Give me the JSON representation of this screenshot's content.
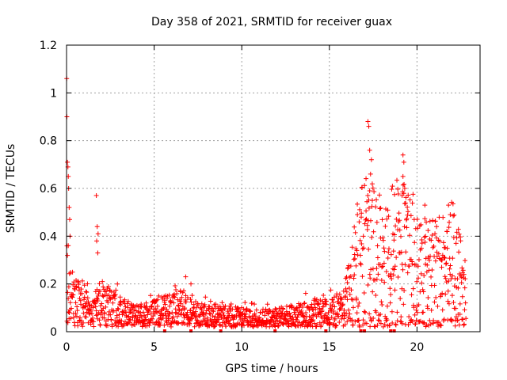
{
  "chart_data": {
    "type": "scatter",
    "title": "Day 358 of 2021, SRMTID for receiver guax",
    "xlabel": "GPS time / hours",
    "ylabel": "SRMTID / TECUs",
    "xlim": [
      0,
      23.6
    ],
    "ylim": [
      0,
      1.2
    ],
    "x_ticks": [
      0,
      5,
      10,
      15,
      20
    ],
    "y_ticks": [
      0,
      0.2,
      0.4,
      0.6,
      0.8,
      1.0,
      1.2
    ],
    "x_tick_labels": [
      "0",
      "5",
      "10",
      "15",
      "20"
    ],
    "y_tick_labels": [
      "0",
      "0.2",
      "0.4",
      "0.6",
      "0.8",
      "1",
      "1.2"
    ],
    "grid": true,
    "marker": "+",
    "color": "#ff0000",
    "series": [
      {
        "name": "SRMTID",
        "profile": [
          {
            "x": 0.0,
            "y": 0.22
          },
          {
            "x": 0.3,
            "y": 0.15
          },
          {
            "x": 0.8,
            "y": 0.1
          },
          {
            "x": 1.5,
            "y": 0.08
          },
          {
            "x": 2.0,
            "y": 0.12
          },
          {
            "x": 3.0,
            "y": 0.08
          },
          {
            "x": 4.0,
            "y": 0.06
          },
          {
            "x": 5.0,
            "y": 0.07
          },
          {
            "x": 6.5,
            "y": 0.1
          },
          {
            "x": 7.5,
            "y": 0.07
          },
          {
            "x": 9.0,
            "y": 0.06
          },
          {
            "x": 11.0,
            "y": 0.05
          },
          {
            "x": 13.0,
            "y": 0.06
          },
          {
            "x": 14.0,
            "y": 0.08
          },
          {
            "x": 15.0,
            "y": 0.07
          },
          {
            "x": 15.8,
            "y": 0.1
          },
          {
            "x": 16.3,
            "y": 0.2
          },
          {
            "x": 17.0,
            "y": 0.3
          },
          {
            "x": 18.0,
            "y": 0.25
          },
          {
            "x": 19.0,
            "y": 0.3
          },
          {
            "x": 20.0,
            "y": 0.22
          },
          {
            "x": 21.0,
            "y": 0.2
          },
          {
            "x": 22.0,
            "y": 0.25
          },
          {
            "x": 22.8,
            "y": 0.12
          }
        ],
        "spikes": [
          {
            "x": 0.01,
            "y": 1.06
          },
          {
            "x": 0.02,
            "y": 0.9
          },
          {
            "x": 0.05,
            "y": 0.71
          },
          {
            "x": 0.08,
            "y": 0.69
          },
          {
            "x": 0.1,
            "y": 0.65
          },
          {
            "x": 0.12,
            "y": 0.6
          },
          {
            "x": 0.15,
            "y": 0.52
          },
          {
            "x": 0.18,
            "y": 0.47
          },
          {
            "x": 0.2,
            "y": 0.4
          },
          {
            "x": 1.7,
            "y": 0.57
          },
          {
            "x": 1.75,
            "y": 0.44
          },
          {
            "x": 1.8,
            "y": 0.41
          },
          {
            "x": 1.72,
            "y": 0.38
          },
          {
            "x": 1.78,
            "y": 0.33
          },
          {
            "x": 7.1,
            "y": 0.2
          },
          {
            "x": 6.8,
            "y": 0.23
          },
          {
            "x": 17.2,
            "y": 0.88
          },
          {
            "x": 17.25,
            "y": 0.86
          },
          {
            "x": 17.3,
            "y": 0.76
          },
          {
            "x": 17.4,
            "y": 0.72
          },
          {
            "x": 17.35,
            "y": 0.66
          },
          {
            "x": 17.3,
            "y": 0.59
          },
          {
            "x": 17.45,
            "y": 0.55
          },
          {
            "x": 19.2,
            "y": 0.74
          },
          {
            "x": 19.25,
            "y": 0.71
          },
          {
            "x": 19.2,
            "y": 0.65
          },
          {
            "x": 19.3,
            "y": 0.6
          },
          {
            "x": 19.15,
            "y": 0.57
          },
          {
            "x": 20.45,
            "y": 0.53
          },
          {
            "x": 21.8,
            "y": 0.53
          },
          {
            "x": 21.9,
            "y": 0.49
          },
          {
            "x": 16.6,
            "y": 0.49
          },
          {
            "x": 16.7,
            "y": 0.46
          }
        ],
        "zero_points": [
          5.6,
          7.1,
          8.8,
          11.9,
          14.8,
          16.8,
          17.0,
          18.5,
          18.7
        ]
      }
    ]
  }
}
